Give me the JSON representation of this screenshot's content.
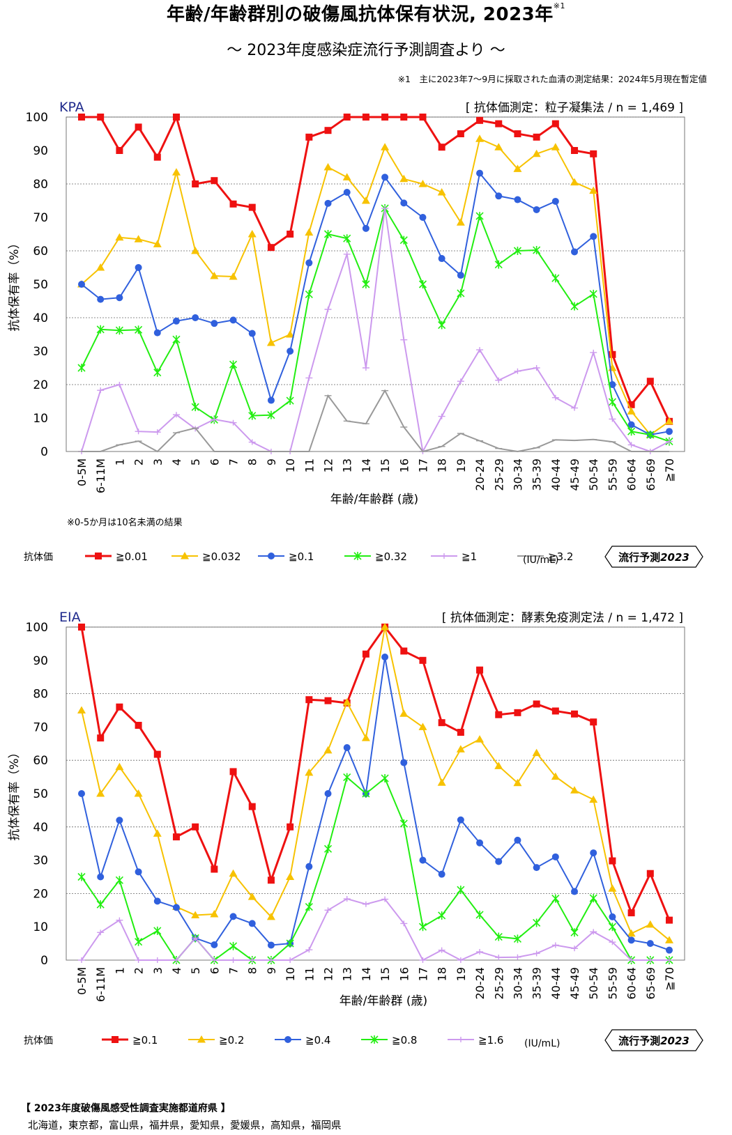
{
  "header": {
    "title": "年齢/年齢群別の破傷風抗体保有状況, 2023年",
    "title_sup": "※1",
    "subtitle": "〜 2023年度感染症流行予測調査より 〜",
    "footnote": "※1　主に2023年7〜9月に採取された血清の測定結果：2024年5月現在暫定値"
  },
  "x_tick_labels": [
    "0-5M",
    "6-11M",
    "1",
    "2",
    "3",
    "4",
    "5",
    "6",
    "7",
    "8",
    "9",
    "10",
    "11",
    "12",
    "13",
    "14",
    "15",
    "16",
    "17",
    "18",
    "19",
    "20-24",
    "25-29",
    "30-34",
    "35-39",
    "40-44",
    "45-49",
    "50-54",
    "55-59",
    "60-64",
    "65-69",
    "≧70"
  ],
  "chart_data": [
    {
      "type": "line",
      "label": "KPA",
      "method": "[ 抗体価測定：粒子凝集法 / n = 1,469 ]",
      "ylabel": "抗体保有率（%）",
      "xlabel": "年齢/年齢群 (歳)",
      "ylim": [
        0,
        100
      ],
      "yticks": [
        0,
        10,
        20,
        30,
        40,
        50,
        60,
        70,
        80,
        90,
        100
      ],
      "note": "※0-5か月は10名未満の結果",
      "legend_title": "抗体価",
      "legend_unit": "(IU/mL)",
      "badge": "流行予測",
      "badge_year": "2023",
      "series": [
        {
          "name": "≧0.01",
          "color": "#ee1111",
          "marker": "square",
          "values": [
            100,
            100,
            90,
            97,
            88,
            100,
            80,
            81,
            74,
            73,
            61,
            65,
            94,
            96,
            100,
            100,
            100,
            100,
            100,
            91,
            95,
            99,
            98,
            95,
            94,
            98,
            90,
            89,
            29,
            14,
            21,
            9
          ]
        },
        {
          "name": "≧0.032",
          "color": "#f7c200",
          "marker": "triangle",
          "values": [
            50,
            55,
            64,
            63.5,
            62,
            83.5,
            60,
            52.5,
            52.3,
            65,
            32.5,
            35,
            65.5,
            85,
            82,
            75,
            91,
            81.5,
            80,
            77.5,
            68.5,
            93.5,
            91,
            84.5,
            89,
            91,
            80.5,
            78,
            25,
            12,
            5,
            9
          ]
        },
        {
          "name": "≧0.1",
          "color": "#3060dd",
          "marker": "circle",
          "values": [
            50,
            45.5,
            46,
            55,
            35.5,
            39,
            40,
            38.3,
            39.3,
            35.3,
            15.3,
            30,
            56.4,
            74.2,
            77.5,
            66.7,
            82,
            74.3,
            70,
            57.7,
            52.7,
            83.2,
            76.4,
            75.3,
            72.3,
            74.8,
            59.7,
            64.3,
            20,
            8,
            5,
            6
          ]
        },
        {
          "name": "≧0.32",
          "color": "#22ee11",
          "marker": "star",
          "values": [
            25,
            36.5,
            36.2,
            36.4,
            23.6,
            33.5,
            13.3,
            9.5,
            26,
            10.7,
            10.9,
            15.2,
            47,
            65,
            63.7,
            50,
            72.7,
            63.2,
            50,
            37.8,
            47.3,
            70.4,
            55.9,
            60,
            60.2,
            51.8,
            43.4,
            47.1,
            14.8,
            6,
            5,
            3
          ]
        },
        {
          "name": "≧1",
          "color": "#cc99ee",
          "marker": "plus",
          "values": [
            0,
            18.3,
            20,
            6,
            5.8,
            11,
            6.8,
            9.6,
            8.6,
            2.8,
            0,
            0,
            22,
            42.5,
            59,
            25,
            72.7,
            33.4,
            0,
            10.5,
            21,
            30.4,
            21.3,
            24,
            25,
            16.1,
            13,
            29.6,
            9.7,
            2,
            0,
            3
          ]
        },
        {
          "name": "≧3.2",
          "color": "#999999",
          "marker": "dash",
          "values": [
            0,
            0,
            2,
            3.1,
            0,
            5.6,
            7,
            0,
            0,
            0,
            0,
            0,
            0,
            16.7,
            9.1,
            8.3,
            18.2,
            7.3,
            0,
            1.5,
            5.4,
            3.2,
            0.9,
            0,
            1.1,
            3.5,
            3.3,
            3.6,
            2.9,
            0,
            0,
            0
          ]
        }
      ]
    },
    {
      "type": "line",
      "label": "EIA",
      "method": "[ 抗体価測定：酵素免疫測定法 / n = 1,472 ]",
      "ylabel": "抗体保有率（%）",
      "xlabel": "年齢/年齢群 (歳)",
      "ylim": [
        0,
        100
      ],
      "yticks": [
        0,
        10,
        20,
        30,
        40,
        50,
        60,
        70,
        80,
        90,
        100
      ],
      "legend_title": "抗体価",
      "legend_unit": "(IU/mL)",
      "badge": "流行予測",
      "badge_year": "2023",
      "series": [
        {
          "name": "≧0.1",
          "color": "#ee1111",
          "marker": "square",
          "values": [
            100,
            66.7,
            76,
            70.5,
            61.8,
            37,
            40,
            27.3,
            56.6,
            46.1,
            24,
            40,
            78.2,
            77.9,
            77.2,
            91.9,
            100,
            92.8,
            90,
            71.3,
            68.4,
            87.1,
            73.7,
            74.3,
            76.9,
            74.8,
            73.9,
            71.5,
            29.8,
            14.2,
            26,
            12
          ]
        },
        {
          "name": "≧0.2",
          "color": "#f7c200",
          "marker": "triangle",
          "values": [
            75,
            50,
            58,
            50,
            38,
            16,
            13.5,
            13.8,
            26,
            19,
            13,
            25,
            56.3,
            63,
            77.4,
            66.7,
            100,
            74,
            70,
            53.3,
            63.3,
            66.3,
            58.3,
            53.2,
            62.2,
            55.1,
            51,
            48.2,
            21.5,
            8,
            10.7,
            6
          ]
        },
        {
          "name": "≧0.4",
          "color": "#3060dd",
          "marker": "circle",
          "values": [
            50,
            25,
            42,
            26.5,
            17.7,
            15.8,
            6.6,
            4.6,
            13.1,
            11,
            4.5,
            5,
            28.1,
            50,
            63.8,
            50,
            91,
            59.3,
            30,
            25.8,
            42.1,
            35.2,
            29.6,
            36,
            27.8,
            31,
            20.6,
            32.2,
            13,
            6,
            5,
            3
          ]
        },
        {
          "name": "≧0.8",
          "color": "#22ee11",
          "marker": "star",
          "values": [
            25,
            16.7,
            24,
            5.5,
            8.8,
            0,
            6.6,
            0,
            4.2,
            0,
            0,
            5,
            16,
            33.4,
            54.9,
            50,
            54.6,
            41,
            10,
            13.4,
            21.1,
            13.6,
            7,
            6.4,
            11.2,
            18.5,
            8.3,
            18.6,
            10,
            0,
            0,
            0
          ]
        },
        {
          "name": "≧1.6",
          "color": "#cc99ee",
          "marker": "plus",
          "values": [
            0,
            8.3,
            12,
            0,
            0,
            0,
            6.6,
            0,
            0,
            0,
            0,
            0,
            3.1,
            15,
            18.4,
            16.8,
            18.3,
            11,
            0,
            3,
            0,
            2.5,
            0.8,
            0.9,
            2,
            4.5,
            3.5,
            8.5,
            5.4,
            0,
            0,
            0
          ]
        }
      ]
    }
  ],
  "footer": {
    "heading": "【 2023年度破傷風感受性調査実施都道府県 】",
    "prefectures": "北海道，東京都，富山県，福井県，愛知県，愛媛県，高知県，福岡県"
  }
}
